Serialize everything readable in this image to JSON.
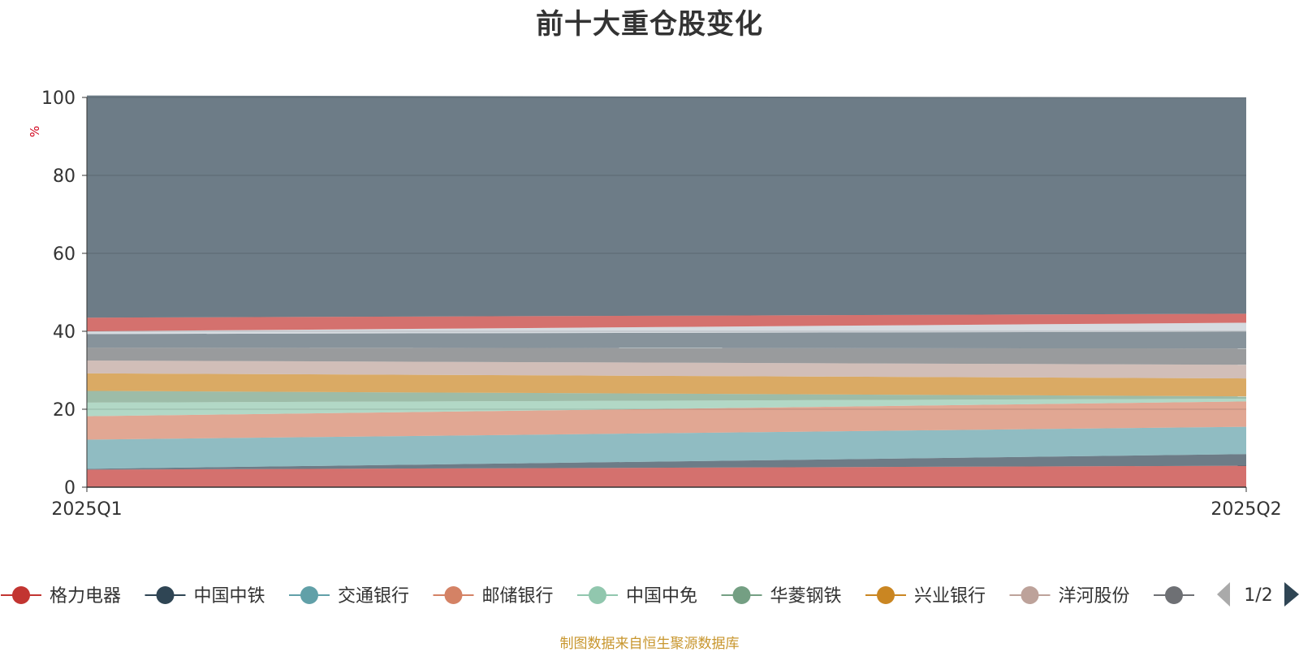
{
  "chart_data": {
    "type": "area",
    "stacked": true,
    "title": "前十大重仓股变化",
    "ylabel": "%",
    "x": [
      "2025Q1",
      "2025Q2"
    ],
    "ylim": [
      0,
      100
    ],
    "yticks": [
      0,
      20,
      40,
      60,
      80,
      100
    ],
    "grid": true,
    "legend_position": "bottom",
    "legend_page": "1/2",
    "series": [
      {
        "name": "格力电器",
        "color": "#c23531",
        "values": [
          4.5,
          5.5
        ]
      },
      {
        "name": "中国中铁",
        "color": "#2f4554",
        "values": [
          0.2,
          3.0
        ]
      },
      {
        "name": "交通银行",
        "color": "#61a0a8",
        "values": [
          7.5,
          7.0
        ]
      },
      {
        "name": "邮储银行",
        "color": "#d48265",
        "values": [
          6.0,
          6.5
        ]
      },
      {
        "name": "中国中免",
        "color": "#91c7ae",
        "values": [
          3.5,
          0.7
        ]
      },
      {
        "name": "华菱钢铁",
        "color": "#749f83",
        "values": [
          3.0,
          0.6
        ]
      },
      {
        "name": "兴业银行",
        "color": "#ca8622",
        "values": [
          4.5,
          4.6
        ]
      },
      {
        "name": "洋河股份",
        "color": "#bda29a",
        "values": [
          3.3,
          3.5
        ]
      },
      {
        "name": "",
        "color": "#6e7074",
        "values": [
          3.3,
          4.2
        ]
      },
      {
        "name": "",
        "color": "#546570",
        "values": [
          3.5,
          4.3
        ]
      },
      {
        "name": "",
        "color": "#c4ccd3",
        "values": [
          0.7,
          2.3
        ]
      },
      {
        "name": "",
        "color": "#c23531",
        "values": [
          3.5,
          2.3
        ]
      },
      {
        "name": "",
        "color": "#2f4554",
        "values": [
          57.0,
          55.5
        ]
      }
    ],
    "source_note": "制图数据来自恒生聚源数据库"
  }
}
